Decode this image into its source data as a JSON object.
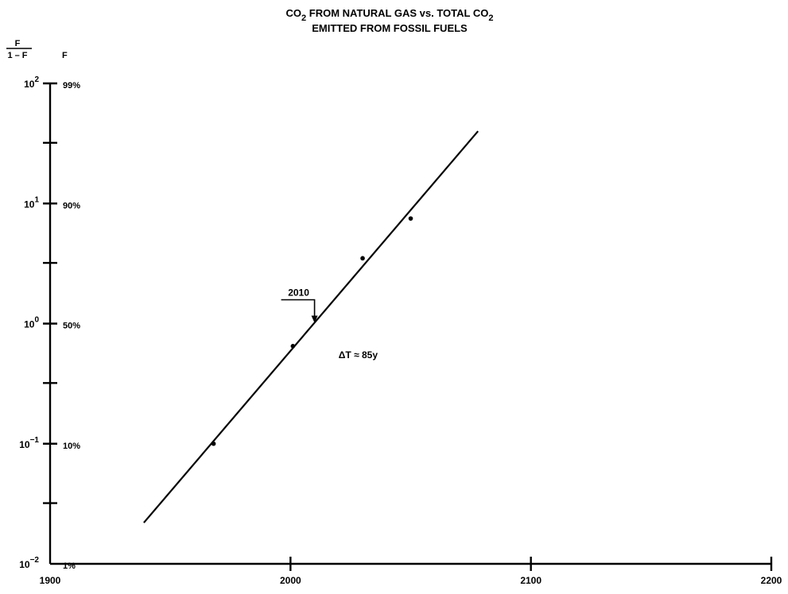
{
  "chart_data": {
    "type": "line",
    "title_lines": [
      {
        "main": "CO",
        "sub": "2",
        "rest": " FROM NATURAL GAS vs. TOTAL CO",
        "sub2": "2"
      },
      {
        "main": "EMITTED FROM FOSSIL FUELS",
        "sub": "",
        "rest": "",
        "sub2": ""
      }
    ],
    "yaxis_header": {
      "numerator": "F",
      "denominator": "1 – F",
      "right": "F"
    },
    "xlim": [
      1900,
      2200
    ],
    "x_ticks": [
      {
        "value": 1900,
        "label": "1900"
      },
      {
        "value": 2000,
        "label": "2000"
      },
      {
        "value": 2100,
        "label": "2100"
      },
      {
        "value": 2200,
        "label": "2200"
      }
    ],
    "y_scale": "log",
    "ylim": [
      0.01,
      100
    ],
    "y_ticks": [
      {
        "value": 0.01,
        "base": "10",
        "exp": "−2",
        "pct": "1%"
      },
      {
        "value": 0.1,
        "base": "10",
        "exp": "−1",
        "pct": "10%"
      },
      {
        "value": 1,
        "base": "10",
        "exp": "0",
        "pct": "50%"
      },
      {
        "value": 10,
        "base": "10",
        "exp": "1",
        "pct": "90%"
      },
      {
        "value": 100,
        "base": "10",
        "exp": "2",
        "pct": "99%"
      }
    ],
    "y_minor_ticks": [
      0.032,
      0.32,
      3.2,
      32
    ],
    "series": [
      {
        "kind": "points",
        "points": [
          {
            "x": 1968,
            "y": 0.1
          },
          {
            "x": 2001,
            "y": 0.65
          },
          {
            "x": 2030,
            "y": 3.5
          },
          {
            "x": 2050,
            "y": 7.5
          }
        ]
      },
      {
        "kind": "fit",
        "points": [
          {
            "x": 1939,
            "y": 0.022
          },
          {
            "x": 2078,
            "y": 40
          }
        ]
      }
    ],
    "annotations": [
      {
        "text": "2010",
        "x": 2010,
        "y": 1.0,
        "kind": "arrow-marker"
      },
      {
        "text": "ΔT ≈ 85y",
        "x": 2020,
        "y": 0.55,
        "kind": "label"
      }
    ],
    "grid": false,
    "legend": false
  }
}
